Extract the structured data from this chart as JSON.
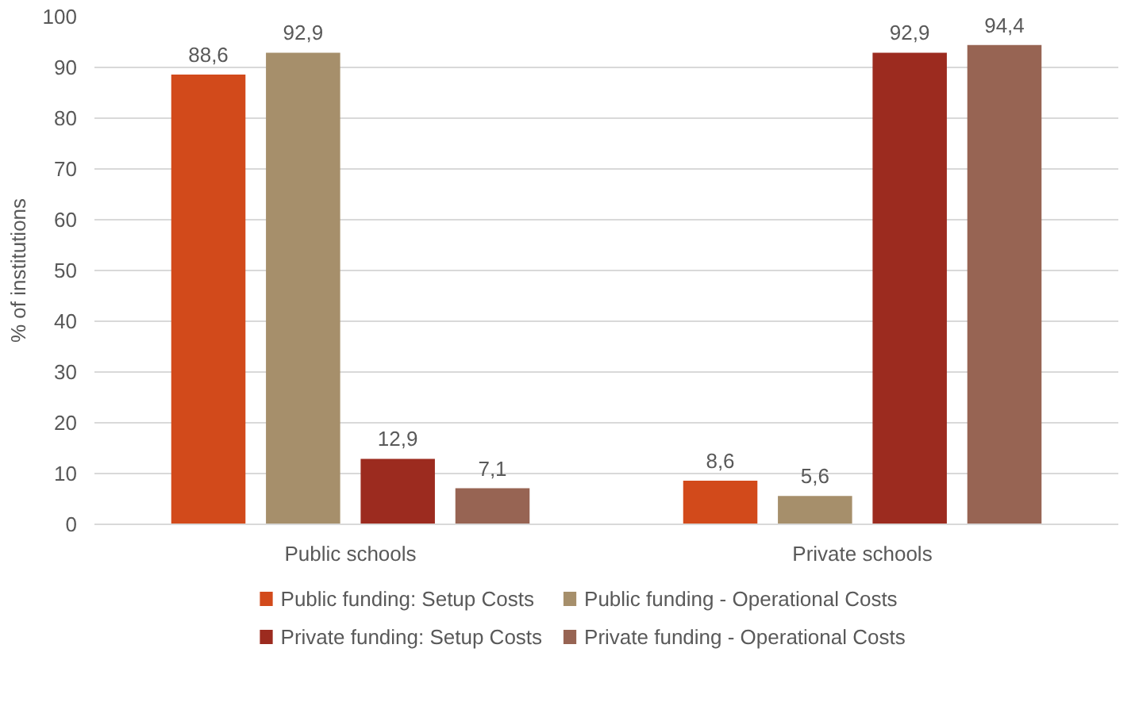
{
  "chart_data": {
    "type": "bar",
    "ylabel": "% of institutions",
    "categories": [
      "Public schools",
      "Private schools"
    ],
    "series": [
      {
        "name": "Public funding: Setup Costs",
        "color": "#d24a1b",
        "values": [
          88.6,
          8.6
        ],
        "value_labels": [
          "88,6",
          "8,6"
        ]
      },
      {
        "name": "Public funding - Operational Costs",
        "color": "#a68f6b",
        "values": [
          92.9,
          5.6
        ],
        "value_labels": [
          "92,9",
          "5,6"
        ]
      },
      {
        "name": "Private funding: Setup Costs",
        "color": "#9c2b1f",
        "values": [
          12.9,
          92.9
        ],
        "value_labels": [
          "12,9",
          "92,9"
        ]
      },
      {
        "name": "Private funding - Operational Costs",
        "color": "#976453",
        "values": [
          7.1,
          94.4
        ],
        "value_labels": [
          "7,1",
          "94,4"
        ]
      }
    ],
    "ylim": [
      0,
      100
    ],
    "yticks": [
      0,
      10,
      20,
      30,
      40,
      50,
      60,
      70,
      80,
      90,
      100
    ],
    "grid": "y",
    "legend": "bottom"
  }
}
